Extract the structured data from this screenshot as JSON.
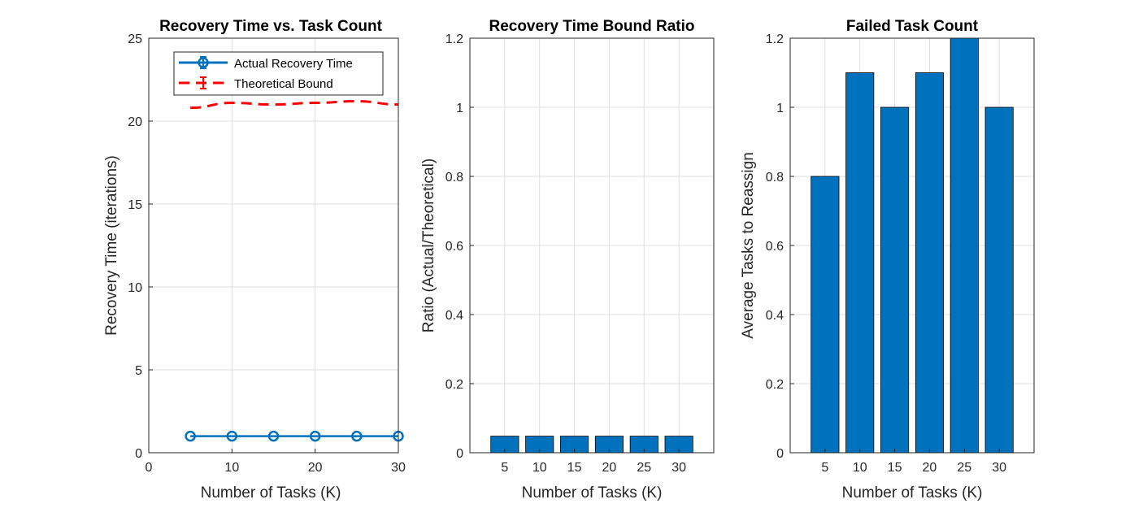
{
  "colors": {
    "bar_fill": "#0072BD",
    "actual_line": "#0072BD",
    "bound_line": "#FF0000",
    "grid": "#DFDFDF",
    "axis": "#262626"
  },
  "chart_data": [
    {
      "type": "line",
      "title": "Recovery Time vs. Task Count",
      "xlabel": "Number of Tasks (K)",
      "ylabel": "Recovery Time (iterations)",
      "xlim": [
        0,
        30
      ],
      "ylim": [
        0,
        25
      ],
      "xticks": [
        0,
        10,
        20,
        30
      ],
      "yticks": [
        0,
        5,
        10,
        15,
        20,
        25
      ],
      "grid": true,
      "legend": {
        "placement": "top-right"
      },
      "x": [
        5,
        10,
        15,
        20,
        25,
        30
      ],
      "series": [
        {
          "name": "Actual Recovery Time",
          "values": [
            1,
            1,
            1,
            1,
            1,
            1
          ],
          "style": "solid-circle-markers"
        },
        {
          "name": "Theoretical Bound",
          "values": [
            20.8,
            21.1,
            21.0,
            21.1,
            21.2,
            21.0
          ],
          "style": "dashed"
        }
      ]
    },
    {
      "type": "bar",
      "title": "Recovery Time Bound Ratio",
      "xlabel": "Number of Tasks (K)",
      "ylabel": "Ratio (Actual/Theoretical)",
      "categories": [
        "5",
        "10",
        "15",
        "20",
        "25",
        "30"
      ],
      "values": [
        0.048,
        0.048,
        0.048,
        0.048,
        0.048,
        0.048
      ],
      "ylim": [
        0,
        1.2
      ],
      "yticks": [
        0,
        0.2,
        0.4,
        0.6,
        0.8,
        1,
        1.2
      ],
      "grid": true
    },
    {
      "type": "bar",
      "title": "Failed Task Count",
      "xlabel": "Number of Tasks (K)",
      "ylabel": "Average Tasks to Reassign",
      "categories": [
        "5",
        "10",
        "15",
        "20",
        "25",
        "30"
      ],
      "values": [
        0.8,
        1.1,
        1.0,
        1.1,
        1.2,
        1.0
      ],
      "ylim": [
        0,
        1.2
      ],
      "yticks": [
        0,
        0.2,
        0.4,
        0.6,
        0.8,
        1,
        1.2
      ],
      "grid": true
    }
  ]
}
